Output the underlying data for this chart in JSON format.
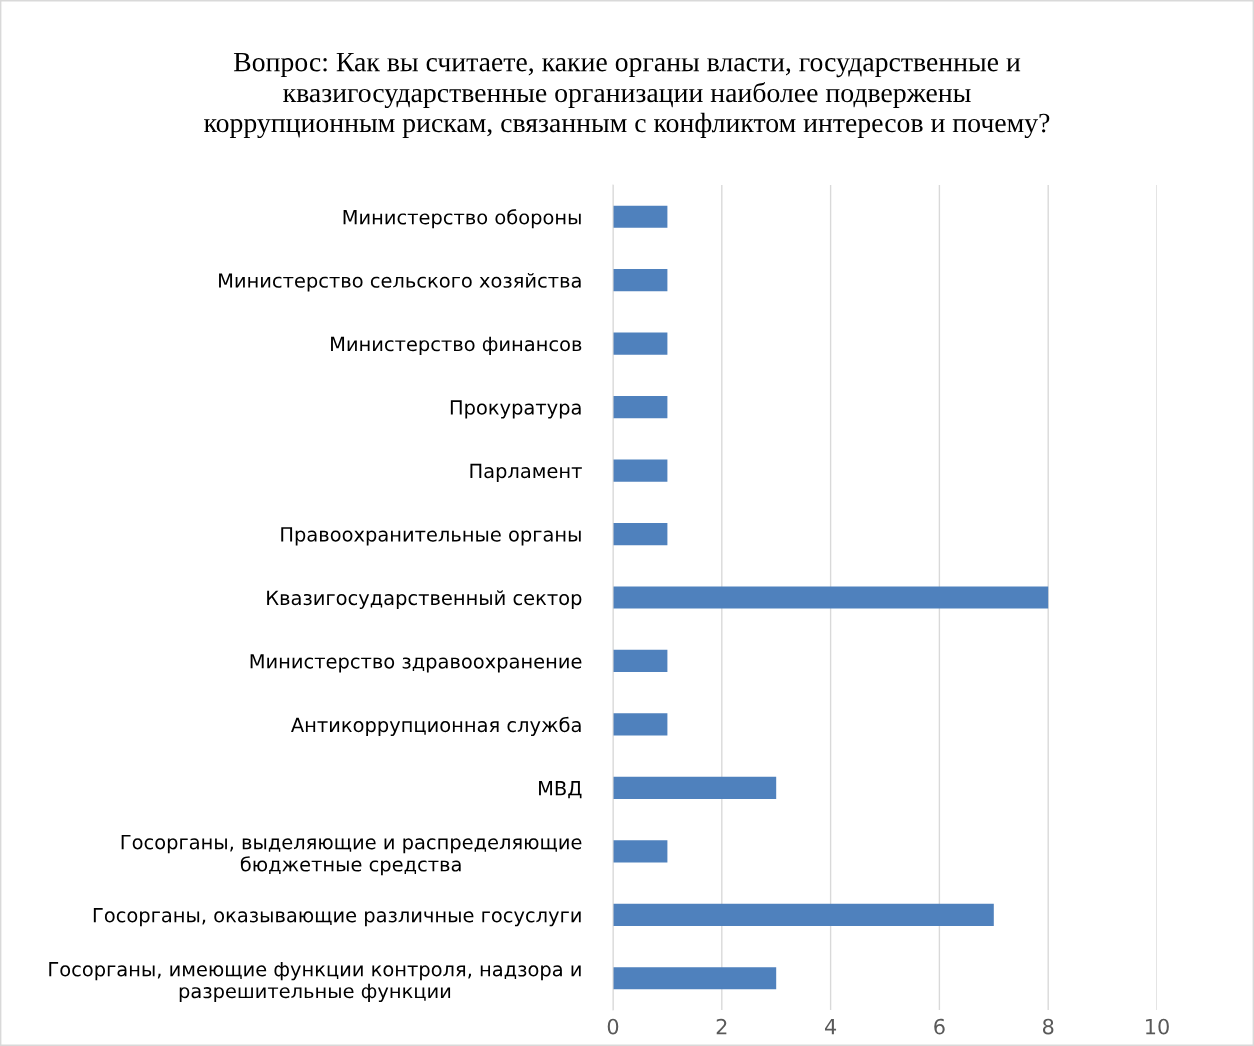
{
  "chart_data": {
    "type": "bar",
    "orientation": "horizontal",
    "title": "Вопрос: Как вы считаете, какие органы власти, государственные и\nквазигосударственные организации наиболее подвержены\nкоррупционным рискам, связанным с конфликтом интересов и почему?",
    "categories": [
      "Министерство обороны",
      "Министерство сельского хозяйства",
      "Министерство финансов",
      "Прокуратура",
      "Парламент",
      "Правоохранительные органы",
      "Квазигосударственный сектор",
      "Министерство здравоохранение",
      "Антикоррупционная служба",
      "МВД",
      "Госорганы, выделяющие и распределяющие\nбюджетные средства",
      "Госорганы, оказывающие различные госуслуги",
      "Госорганы, имеющие функции контроля, надзора и\nразрешительные функции"
    ],
    "values": [
      1,
      1,
      1,
      1,
      1,
      1,
      8,
      1,
      1,
      3,
      1,
      7,
      3
    ],
    "color": "#4f81bd",
    "xlim": [
      0,
      10
    ],
    "xticks": [
      0,
      2,
      4,
      6,
      8,
      10
    ],
    "grid": "x"
  }
}
